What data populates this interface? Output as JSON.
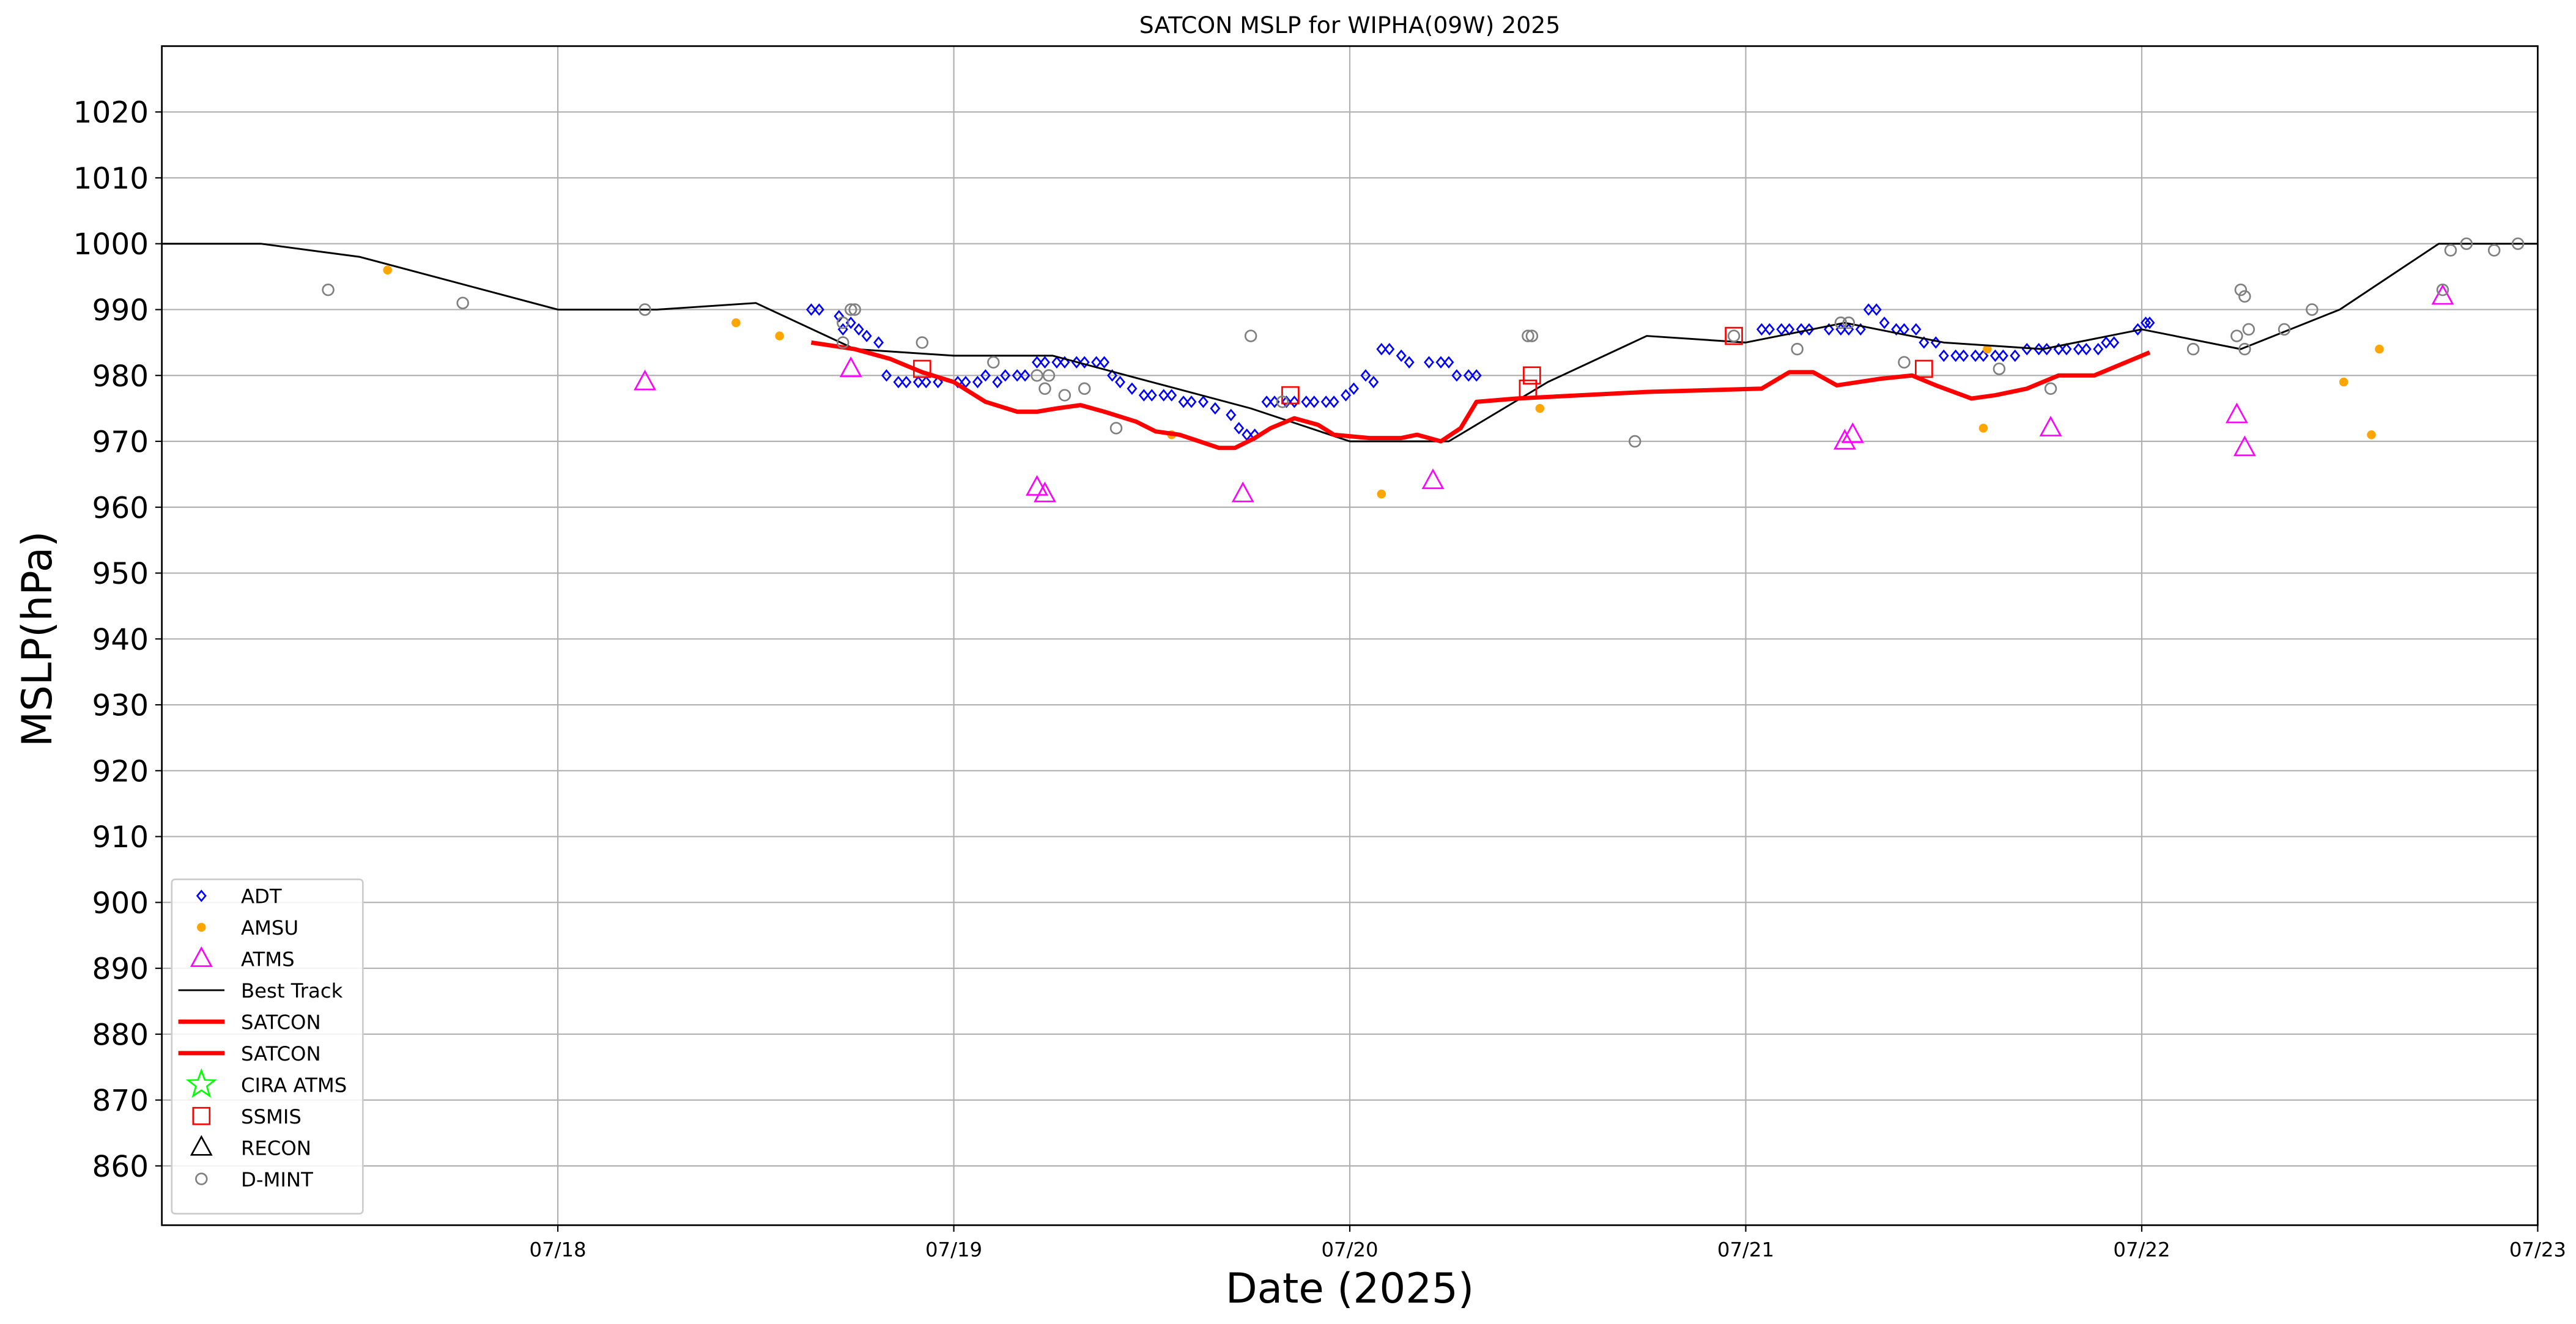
{
  "chart_data": {
    "type": "scatter",
    "title": "SATCON MSLP for WIPHA(09W) 2025",
    "xlabel": "Date (2025)",
    "ylabel": "MSLP(hPa)",
    "xlim": [
      17,
      23
    ],
    "xticks": [
      {
        "value": 18,
        "label": "07/18"
      },
      {
        "value": 19,
        "label": "07/19"
      },
      {
        "value": 20,
        "label": "07/20"
      },
      {
        "value": 21,
        "label": "07/21"
      },
      {
        "value": 22,
        "label": "07/22"
      },
      {
        "value": 23,
        "label": "07/23"
      }
    ],
    "ylim": [
      851,
      1030
    ],
    "yticks": [
      860,
      870,
      880,
      890,
      900,
      910,
      920,
      930,
      940,
      950,
      960,
      970,
      980,
      990,
      1000,
      1010,
      1020
    ],
    "grid": true,
    "legend": "lower left",
    "series": [
      {
        "name": "ADT",
        "color": "#0000ff",
        "marker": "diamond",
        "x": [
          18.64,
          18.66,
          18.71,
          18.72,
          18.74,
          18.76,
          18.78,
          18.81,
          18.83,
          18.86,
          18.88,
          18.91,
          18.93,
          18.96,
          19.01,
          19.03,
          19.06,
          19.08,
          19.11,
          19.13,
          19.16,
          19.18,
          19.21,
          19.23,
          19.26,
          19.28,
          19.31,
          19.33,
          19.36,
          19.38,
          19.4,
          19.42,
          19.45,
          19.48,
          19.5,
          19.53,
          19.55,
          19.58,
          19.6,
          19.63,
          19.66,
          19.7,
          19.72,
          19.74,
          19.76,
          19.79,
          19.81,
          19.84,
          19.86,
          19.89,
          19.91,
          19.94,
          19.96,
          19.99,
          20.01,
          20.04,
          20.06,
          20.08,
          20.1,
          20.13,
          20.15,
          20.2,
          20.23,
          20.25,
          20.27,
          20.3,
          20.32,
          21.04,
          21.06,
          21.09,
          21.11,
          21.14,
          21.16,
          21.21,
          21.24,
          21.26,
          21.29,
          21.31,
          21.33,
          21.35,
          21.38,
          21.4,
          21.43,
          21.45,
          21.48,
          21.5,
          21.53,
          21.55,
          21.58,
          21.6,
          21.63,
          21.65,
          21.68,
          21.71,
          21.74,
          21.76,
          21.79,
          21.81,
          21.84,
          21.86,
          21.89,
          21.91,
          21.93,
          21.99,
          22.01,
          22.02
        ],
        "values": [
          990,
          990,
          989,
          987,
          988,
          987,
          986,
          985,
          980,
          979,
          979,
          979,
          979,
          979,
          979,
          979,
          979,
          980,
          979,
          980,
          980,
          980,
          982,
          982,
          982,
          982,
          982,
          982,
          982,
          982,
          980,
          979,
          978,
          977,
          977,
          977,
          977,
          976,
          976,
          976,
          975,
          974,
          972,
          971,
          971,
          976,
          976,
          976,
          976,
          976,
          976,
          976,
          976,
          977,
          978,
          980,
          979,
          984,
          984,
          983,
          982,
          982,
          982,
          982,
          980,
          980,
          980,
          987,
          987,
          987,
          987,
          987,
          987,
          987,
          987,
          987,
          987,
          990,
          990,
          988,
          987,
          987,
          987,
          985,
          985,
          983,
          983,
          983,
          983,
          983,
          983,
          983,
          983,
          984,
          984,
          984,
          984,
          984,
          984,
          984,
          984,
          985,
          985,
          987,
          988,
          988
        ]
      },
      {
        "name": "AMSU",
        "color": "#ffa500",
        "marker": "dot",
        "x": [
          17.57,
          18.45,
          18.56,
          19.55,
          20.08,
          20.48,
          21.6,
          21.61,
          22.51,
          22.58,
          22.6
        ],
        "values": [
          996,
          988,
          986,
          971,
          962,
          975,
          972,
          984,
          979,
          971,
          984
        ]
      },
      {
        "name": "ATMS",
        "color": "#ff00ff",
        "marker": "triangle",
        "x": [
          18.22,
          18.74,
          19.21,
          19.23,
          19.73,
          20.21,
          21.25,
          21.27,
          21.77,
          22.24,
          22.26,
          22.76
        ],
        "values": [
          979,
          981,
          963,
          962,
          962,
          964,
          970,
          971,
          972,
          974,
          969,
          992
        ]
      },
      {
        "name": "Best Track",
        "color": "#000000",
        "marker": "line",
        "x": [
          17.0,
          17.25,
          17.5,
          18.0,
          18.25,
          18.5,
          18.75,
          19.0,
          19.25,
          19.5,
          19.75,
          20.0,
          20.25,
          20.5,
          20.75,
          21.0,
          21.25,
          21.5,
          21.75,
          22.0,
          22.25,
          22.5,
          22.75,
          23.0
        ],
        "values": [
          1000,
          1000,
          998,
          990,
          990,
          991,
          984,
          983,
          983,
          979,
          975,
          970,
          970,
          979,
          986,
          985,
          988,
          985,
          984,
          987,
          984,
          990,
          1000,
          1000
        ]
      },
      {
        "name": "SATCON",
        "color": "#ff0000",
        "marker": "thickline",
        "x": [
          18.64,
          18.75,
          18.84,
          18.92,
          19.0,
          19.08,
          19.16,
          19.21,
          19.26,
          19.32,
          19.38,
          19.46,
          19.51,
          19.57,
          19.62,
          19.67,
          19.71,
          19.76,
          19.8,
          19.86,
          19.92,
          19.96,
          20.05,
          20.13,
          20.17,
          20.23,
          20.28,
          20.32,
          20.42,
          20.75,
          21.04,
          21.11,
          21.17,
          21.23,
          21.34,
          21.42,
          21.48,
          21.57,
          21.63,
          21.71,
          21.79,
          21.88,
          21.98,
          22.02
        ],
        "values": [
          985,
          984,
          982.5,
          980.5,
          979,
          976,
          974.5,
          974.5,
          975,
          975.5,
          974.5,
          973,
          971.5,
          971,
          970,
          969,
          969,
          970.5,
          972,
          973.5,
          972.5,
          971,
          970.5,
          970.5,
          971,
          970,
          972,
          976,
          976.5,
          977.5,
          978,
          980.5,
          980.5,
          978.5,
          979.5,
          980,
          978.5,
          976.5,
          977,
          978,
          980,
          980,
          982.5,
          983.5
        ]
      },
      {
        "name": "SATCON",
        "color": "#ff0000",
        "marker": "thickline",
        "x": [],
        "values": []
      },
      {
        "name": "CIRA ATMS",
        "color": "#00ff00",
        "marker": "star",
        "x": [],
        "values": []
      },
      {
        "name": "SSMIS",
        "color": "#ff0000",
        "marker": "square",
        "x": [
          18.92,
          19.85,
          20.45,
          20.46,
          20.97,
          21.45
        ],
        "values": [
          981,
          977,
          978,
          980,
          986,
          981
        ]
      },
      {
        "name": "RECON",
        "color": "#000000",
        "marker": "triangle",
        "x": [],
        "values": []
      },
      {
        "name": "D-MINT",
        "color": "#808080",
        "marker": "circle",
        "x": [
          17.42,
          17.76,
          18.22,
          18.72,
          18.72,
          18.74,
          18.75,
          18.92,
          19.1,
          19.21,
          19.23,
          19.24,
          19.28,
          19.33,
          19.41,
          19.75,
          19.83,
          20.45,
          20.46,
          20.72,
          20.97,
          21.13,
          21.24,
          21.26,
          21.4,
          21.64,
          21.77,
          22.13,
          22.24,
          22.25,
          22.26,
          22.26,
          22.27,
          22.36,
          22.43,
          22.76,
          22.78,
          22.82,
          22.89,
          22.95
        ],
        "values": [
          993,
          991,
          990,
          988,
          985,
          990,
          990,
          985,
          982,
          980,
          978,
          980,
          977,
          978,
          972,
          986,
          976,
          986,
          986,
          970,
          986,
          984,
          988,
          988,
          982,
          981,
          978,
          984,
          986,
          993,
          992,
          984,
          987,
          987,
          990,
          993,
          999,
          1000,
          999,
          1000
        ]
      }
    ]
  }
}
